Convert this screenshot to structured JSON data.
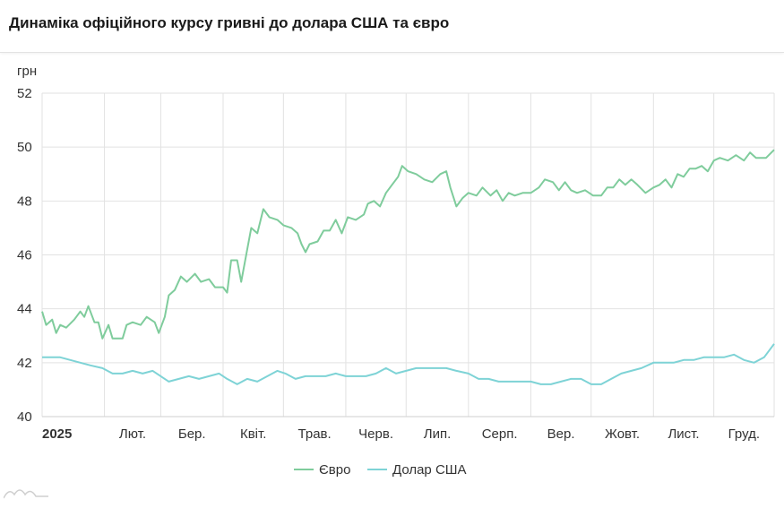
{
  "title": "Динаміка офіційного курсу гривні до долара США та євро",
  "chart_data": {
    "type": "line",
    "title": "Динаміка офіційного курсу гривні до долара США та євро",
    "ylabel": "грн",
    "ylim": [
      40,
      52
    ],
    "yticks": [
      40,
      42,
      44,
      46,
      48,
      50,
      52
    ],
    "xlim": [
      "2025-01-01",
      "2025-12-31"
    ],
    "xticks": [
      {
        "date": "2025-01-01",
        "label": "2025",
        "bold": true
      },
      {
        "date": "2025-02-01",
        "label": "Лют."
      },
      {
        "date": "2025-03-01",
        "label": "Бер."
      },
      {
        "date": "2025-04-01",
        "label": "Квіт."
      },
      {
        "date": "2025-05-01",
        "label": "Трав."
      },
      {
        "date": "2025-06-01",
        "label": "Черв."
      },
      {
        "date": "2025-07-01",
        "label": "Лип."
      },
      {
        "date": "2025-08-01",
        "label": "Серп."
      },
      {
        "date": "2025-09-01",
        "label": "Вер."
      },
      {
        "date": "2025-10-01",
        "label": "Жовт."
      },
      {
        "date": "2025-11-01",
        "label": "Лист."
      },
      {
        "date": "2025-12-01",
        "label": "Груд."
      }
    ],
    "grid": true,
    "legend_position": "bottom-center",
    "series": [
      {
        "name": "Євро",
        "color": "#7fcc9c",
        "points": [
          [
            "2025-01-01",
            43.9
          ],
          [
            "2025-01-03",
            43.4
          ],
          [
            "2025-01-06",
            43.6
          ],
          [
            "2025-01-08",
            43.1
          ],
          [
            "2025-01-10",
            43.4
          ],
          [
            "2025-01-13",
            43.3
          ],
          [
            "2025-01-17",
            43.6
          ],
          [
            "2025-01-20",
            43.9
          ],
          [
            "2025-01-22",
            43.7
          ],
          [
            "2025-01-24",
            44.1
          ],
          [
            "2025-01-27",
            43.5
          ],
          [
            "2025-01-29",
            43.5
          ],
          [
            "2025-01-31",
            42.9
          ],
          [
            "2025-02-03",
            43.4
          ],
          [
            "2025-02-05",
            42.9
          ],
          [
            "2025-02-10",
            42.9
          ],
          [
            "2025-02-12",
            43.4
          ],
          [
            "2025-02-15",
            43.5
          ],
          [
            "2025-02-19",
            43.4
          ],
          [
            "2025-02-22",
            43.7
          ],
          [
            "2025-02-26",
            43.5
          ],
          [
            "2025-02-28",
            43.1
          ],
          [
            "2025-03-03",
            43.7
          ],
          [
            "2025-03-05",
            44.5
          ],
          [
            "2025-03-08",
            44.7
          ],
          [
            "2025-03-11",
            45.2
          ],
          [
            "2025-03-14",
            45.0
          ],
          [
            "2025-03-18",
            45.3
          ],
          [
            "2025-03-21",
            45.0
          ],
          [
            "2025-03-25",
            45.1
          ],
          [
            "2025-03-28",
            44.8
          ],
          [
            "2025-04-01",
            44.8
          ],
          [
            "2025-04-03",
            44.6
          ],
          [
            "2025-04-05",
            45.8
          ],
          [
            "2025-04-08",
            45.8
          ],
          [
            "2025-04-10",
            45.0
          ],
          [
            "2025-04-13",
            46.2
          ],
          [
            "2025-04-15",
            47.0
          ],
          [
            "2025-04-18",
            46.8
          ],
          [
            "2025-04-21",
            47.7
          ],
          [
            "2025-04-24",
            47.4
          ],
          [
            "2025-04-28",
            47.3
          ],
          [
            "2025-05-01",
            47.1
          ],
          [
            "2025-05-05",
            47.0
          ],
          [
            "2025-05-08",
            46.8
          ],
          [
            "2025-05-10",
            46.4
          ],
          [
            "2025-05-12",
            46.1
          ],
          [
            "2025-05-14",
            46.4
          ],
          [
            "2025-05-18",
            46.5
          ],
          [
            "2025-05-21",
            46.9
          ],
          [
            "2025-05-24",
            46.9
          ],
          [
            "2025-05-27",
            47.3
          ],
          [
            "2025-05-30",
            46.8
          ],
          [
            "2025-06-02",
            47.4
          ],
          [
            "2025-06-06",
            47.3
          ],
          [
            "2025-06-10",
            47.5
          ],
          [
            "2025-06-12",
            47.9
          ],
          [
            "2025-06-15",
            48.0
          ],
          [
            "2025-06-18",
            47.8
          ],
          [
            "2025-06-21",
            48.3
          ],
          [
            "2025-06-24",
            48.6
          ],
          [
            "2025-06-27",
            48.9
          ],
          [
            "2025-06-29",
            49.3
          ],
          [
            "2025-07-02",
            49.1
          ],
          [
            "2025-07-06",
            49.0
          ],
          [
            "2025-07-10",
            48.8
          ],
          [
            "2025-07-14",
            48.7
          ],
          [
            "2025-07-18",
            49.0
          ],
          [
            "2025-07-21",
            49.1
          ],
          [
            "2025-07-23",
            48.5
          ],
          [
            "2025-07-26",
            47.8
          ],
          [
            "2025-07-29",
            48.1
          ],
          [
            "2025-08-01",
            48.3
          ],
          [
            "2025-08-05",
            48.2
          ],
          [
            "2025-08-08",
            48.5
          ],
          [
            "2025-08-12",
            48.2
          ],
          [
            "2025-08-15",
            48.4
          ],
          [
            "2025-08-18",
            48.0
          ],
          [
            "2025-08-21",
            48.3
          ],
          [
            "2025-08-24",
            48.2
          ],
          [
            "2025-08-28",
            48.3
          ],
          [
            "2025-09-01",
            48.3
          ],
          [
            "2025-09-05",
            48.5
          ],
          [
            "2025-09-08",
            48.8
          ],
          [
            "2025-09-12",
            48.7
          ],
          [
            "2025-09-15",
            48.4
          ],
          [
            "2025-09-18",
            48.7
          ],
          [
            "2025-09-21",
            48.4
          ],
          [
            "2025-09-24",
            48.3
          ],
          [
            "2025-09-28",
            48.4
          ],
          [
            "2025-10-02",
            48.2
          ],
          [
            "2025-10-06",
            48.2
          ],
          [
            "2025-10-09",
            48.5
          ],
          [
            "2025-10-12",
            48.5
          ],
          [
            "2025-10-15",
            48.8
          ],
          [
            "2025-10-18",
            48.6
          ],
          [
            "2025-10-21",
            48.8
          ],
          [
            "2025-10-24",
            48.6
          ],
          [
            "2025-10-28",
            48.3
          ],
          [
            "2025-11-01",
            48.5
          ],
          [
            "2025-11-04",
            48.6
          ],
          [
            "2025-11-07",
            48.8
          ],
          [
            "2025-11-10",
            48.5
          ],
          [
            "2025-11-13",
            49.0
          ],
          [
            "2025-11-16",
            48.9
          ],
          [
            "2025-11-19",
            49.2
          ],
          [
            "2025-11-22",
            49.2
          ],
          [
            "2025-11-25",
            49.3
          ],
          [
            "2025-11-28",
            49.1
          ],
          [
            "2025-12-01",
            49.5
          ],
          [
            "2025-12-04",
            49.6
          ],
          [
            "2025-12-08",
            49.5
          ],
          [
            "2025-12-12",
            49.7
          ],
          [
            "2025-12-16",
            49.5
          ],
          [
            "2025-12-19",
            49.8
          ],
          [
            "2025-12-22",
            49.6
          ],
          [
            "2025-12-27",
            49.6
          ],
          [
            "2025-12-31",
            49.9
          ]
        ]
      },
      {
        "name": "Долар США",
        "color": "#7ed3d6",
        "points": [
          [
            "2025-01-01",
            42.2
          ],
          [
            "2025-01-06",
            42.2
          ],
          [
            "2025-01-10",
            42.2
          ],
          [
            "2025-01-15",
            42.1
          ],
          [
            "2025-01-20",
            42.0
          ],
          [
            "2025-01-25",
            41.9
          ],
          [
            "2025-01-31",
            41.8
          ],
          [
            "2025-02-05",
            41.6
          ],
          [
            "2025-02-10",
            41.6
          ],
          [
            "2025-02-15",
            41.7
          ],
          [
            "2025-02-20",
            41.6
          ],
          [
            "2025-02-25",
            41.7
          ],
          [
            "2025-03-01",
            41.5
          ],
          [
            "2025-03-05",
            41.3
          ],
          [
            "2025-03-10",
            41.4
          ],
          [
            "2025-03-15",
            41.5
          ],
          [
            "2025-03-20",
            41.4
          ],
          [
            "2025-03-25",
            41.5
          ],
          [
            "2025-03-30",
            41.6
          ],
          [
            "2025-04-03",
            41.4
          ],
          [
            "2025-04-08",
            41.2
          ],
          [
            "2025-04-13",
            41.4
          ],
          [
            "2025-04-18",
            41.3
          ],
          [
            "2025-04-23",
            41.5
          ],
          [
            "2025-04-28",
            41.7
          ],
          [
            "2025-05-02",
            41.6
          ],
          [
            "2025-05-07",
            41.4
          ],
          [
            "2025-05-12",
            41.5
          ],
          [
            "2025-05-17",
            41.5
          ],
          [
            "2025-05-22",
            41.5
          ],
          [
            "2025-05-27",
            41.6
          ],
          [
            "2025-06-01",
            41.5
          ],
          [
            "2025-06-06",
            41.5
          ],
          [
            "2025-06-11",
            41.5
          ],
          [
            "2025-06-16",
            41.6
          ],
          [
            "2025-06-21",
            41.8
          ],
          [
            "2025-06-26",
            41.6
          ],
          [
            "2025-07-01",
            41.7
          ],
          [
            "2025-07-06",
            41.8
          ],
          [
            "2025-07-11",
            41.8
          ],
          [
            "2025-07-16",
            41.8
          ],
          [
            "2025-07-21",
            41.8
          ],
          [
            "2025-07-26",
            41.7
          ],
          [
            "2025-08-01",
            41.6
          ],
          [
            "2025-08-06",
            41.4
          ],
          [
            "2025-08-11",
            41.4
          ],
          [
            "2025-08-16",
            41.3
          ],
          [
            "2025-08-21",
            41.3
          ],
          [
            "2025-08-26",
            41.3
          ],
          [
            "2025-09-01",
            41.3
          ],
          [
            "2025-09-06",
            41.2
          ],
          [
            "2025-09-11",
            41.2
          ],
          [
            "2025-09-16",
            41.3
          ],
          [
            "2025-09-21",
            41.4
          ],
          [
            "2025-09-26",
            41.4
          ],
          [
            "2025-10-01",
            41.2
          ],
          [
            "2025-10-06",
            41.2
          ],
          [
            "2025-10-11",
            41.4
          ],
          [
            "2025-10-16",
            41.6
          ],
          [
            "2025-10-21",
            41.7
          ],
          [
            "2025-10-26",
            41.8
          ],
          [
            "2025-11-01",
            42.0
          ],
          [
            "2025-11-06",
            42.0
          ],
          [
            "2025-11-11",
            42.0
          ],
          [
            "2025-11-16",
            42.1
          ],
          [
            "2025-11-21",
            42.1
          ],
          [
            "2025-11-26",
            42.2
          ],
          [
            "2025-12-01",
            42.2
          ],
          [
            "2025-12-06",
            42.2
          ],
          [
            "2025-12-11",
            42.3
          ],
          [
            "2025-12-16",
            42.1
          ],
          [
            "2025-12-21",
            42.0
          ],
          [
            "2025-12-26",
            42.2
          ],
          [
            "2025-12-31",
            42.7
          ]
        ]
      }
    ]
  }
}
